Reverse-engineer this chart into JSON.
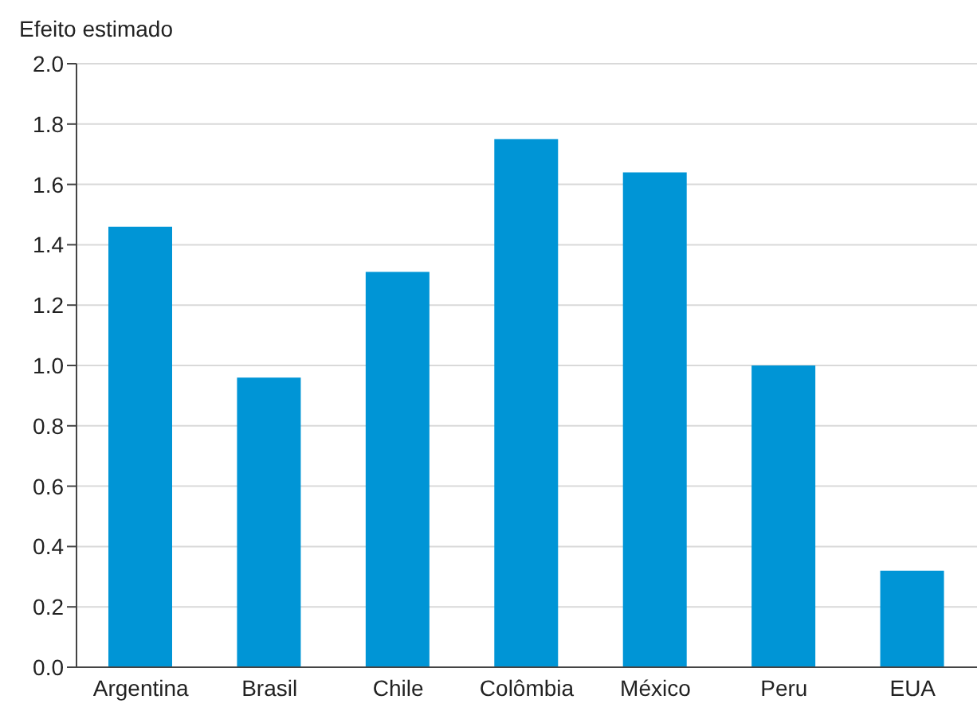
{
  "chart_data": {
    "type": "bar",
    "ylabel": "Efeito estimado",
    "categories": [
      "Argentina",
      "Brasil",
      "Chile",
      "Colômbia",
      "México",
      "Peru",
      "EUA"
    ],
    "values": [
      1.46,
      0.96,
      1.31,
      1.75,
      1.64,
      1.0,
      0.32
    ],
    "color": "#0095d6",
    "ylim": [
      0,
      2
    ],
    "yticks": [
      {
        "value": 0,
        "label": "0.0"
      },
      {
        "value": 0.2,
        "label": "0.2"
      },
      {
        "value": 0.4,
        "label": "0.4"
      },
      {
        "value": 0.6,
        "label": "0.6"
      },
      {
        "value": 0.8,
        "label": "0.8"
      },
      {
        "value": 1,
        "label": "1.0"
      },
      {
        "value": 1.2,
        "label": "1.2"
      },
      {
        "value": 1.4,
        "label": "1.4"
      },
      {
        "value": 1.6,
        "label": "1.6"
      },
      {
        "value": 1.8,
        "label": "1.8"
      },
      {
        "value": 2,
        "label": "2.0"
      }
    ],
    "grid": "y"
  }
}
